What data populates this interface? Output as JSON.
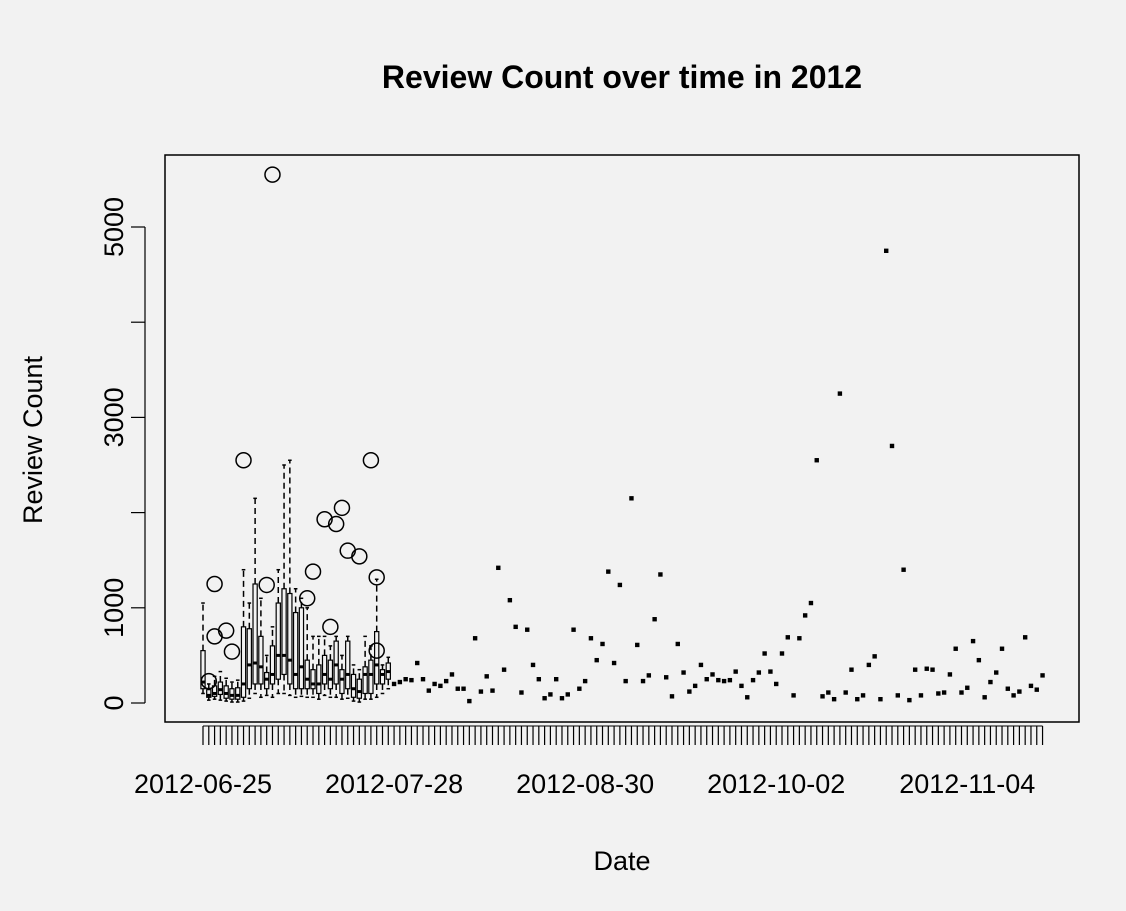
{
  "chart_data": {
    "type": "box",
    "title": "Review Count over time in 2012",
    "xlabel": "Date",
    "ylabel": "Review Count",
    "ylim": [
      -150,
      5700
    ],
    "y_ticks": [
      0,
      1000,
      3000,
      5000
    ],
    "x_tick_labels": [
      "2012-06-25",
      "2012-07-28",
      "2012-08-30",
      "2012-10-02",
      "2012-11-04"
    ],
    "n_categories": 146,
    "boxes": [
      {
        "i": 0,
        "q1": 150,
        "median": 220,
        "q3": 550,
        "low": 100,
        "high": 1050
      },
      {
        "i": 1,
        "q1": 60,
        "median": 80,
        "q3": 140,
        "low": 30,
        "high": 200
      },
      {
        "i": 2,
        "q1": 70,
        "median": 100,
        "q3": 180,
        "low": 40,
        "high": 280
      },
      {
        "i": 3,
        "q1": 90,
        "median": 140,
        "q3": 220,
        "low": 30,
        "high": 330
      },
      {
        "i": 4,
        "q1": 50,
        "median": 100,
        "q3": 180,
        "low": 20,
        "high": 260
      },
      {
        "i": 5,
        "q1": 40,
        "median": 80,
        "q3": 150,
        "low": 10,
        "high": 220
      },
      {
        "i": 6,
        "q1": 40,
        "median": 80,
        "q3": 160,
        "low": 10,
        "high": 240
      },
      {
        "i": 7,
        "q1": 60,
        "median": 200,
        "q3": 800,
        "low": 20,
        "high": 1400
      },
      {
        "i": 8,
        "q1": 150,
        "median": 400,
        "q3": 780,
        "low": 50,
        "high": 1050
      },
      {
        "i": 9,
        "q1": 200,
        "median": 420,
        "q3": 1250,
        "low": 100,
        "high": 2150
      },
      {
        "i": 10,
        "q1": 200,
        "median": 380,
        "q3": 700,
        "low": 60,
        "high": 1100
      },
      {
        "i": 11,
        "q1": 150,
        "median": 250,
        "q3": 320,
        "low": 80,
        "high": 500
      },
      {
        "i": 12,
        "q1": 200,
        "median": 300,
        "q3": 600,
        "low": 60,
        "high": 800
      },
      {
        "i": 13,
        "q1": 250,
        "median": 500,
        "q3": 1050,
        "low": 100,
        "high": 1400
      },
      {
        "i": 14,
        "q1": 300,
        "median": 500,
        "q3": 1200,
        "low": 100,
        "high": 2500
      },
      {
        "i": 15,
        "q1": 200,
        "median": 450,
        "q3": 1150,
        "low": 80,
        "high": 2550
      },
      {
        "i": 16,
        "q1": 150,
        "median": 300,
        "q3": 950,
        "low": 60,
        "high": 1200
      },
      {
        "i": 17,
        "q1": 150,
        "median": 380,
        "q3": 1000,
        "low": 70,
        "high": 1100
      },
      {
        "i": 18,
        "q1": 150,
        "median": 250,
        "q3": 450,
        "low": 60,
        "high": 1000
      },
      {
        "i": 19,
        "q1": 150,
        "median": 200,
        "q3": 350,
        "low": 60,
        "high": 700
      },
      {
        "i": 20,
        "q1": 100,
        "median": 200,
        "q3": 400,
        "low": 40,
        "high": 700
      },
      {
        "i": 21,
        "q1": 200,
        "median": 300,
        "q3": 500,
        "low": 80,
        "high": 700
      },
      {
        "i": 22,
        "q1": 150,
        "median": 250,
        "q3": 450,
        "low": 60,
        "high": 600
      },
      {
        "i": 23,
        "q1": 200,
        "median": 400,
        "q3": 650,
        "low": 60,
        "high": 700
      },
      {
        "i": 24,
        "q1": 100,
        "median": 250,
        "q3": 350,
        "low": 40,
        "high": 500
      },
      {
        "i": 25,
        "q1": 150,
        "median": 300,
        "q3": 650,
        "low": 50,
        "high": 700
      },
      {
        "i": 26,
        "q1": 60,
        "median": 150,
        "q3": 300,
        "low": 20,
        "high": 400
      },
      {
        "i": 27,
        "q1": 50,
        "median": 120,
        "q3": 250,
        "low": 10,
        "high": 350
      },
      {
        "i": 28,
        "q1": 100,
        "median": 300,
        "q3": 380,
        "low": 40,
        "high": 700
      },
      {
        "i": 29,
        "q1": 100,
        "median": 300,
        "q3": 450,
        "low": 40,
        "high": 600
      },
      {
        "i": 30,
        "q1": 200,
        "median": 400,
        "q3": 750,
        "low": 60,
        "high": 1300
      },
      {
        "i": 31,
        "q1": 200,
        "median": 300,
        "q3": 350,
        "low": 100,
        "high": 400
      },
      {
        "i": 32,
        "q1": 250,
        "median": 330,
        "q3": 420,
        "low": 150,
        "high": 480
      }
    ],
    "outliers": [
      {
        "i": 1,
        "y": 230
      },
      {
        "i": 2,
        "y": 1250
      },
      {
        "i": 2,
        "y": 700
      },
      {
        "i": 4,
        "y": 760
      },
      {
        "i": 5,
        "y": 540
      },
      {
        "i": 7,
        "y": 2550
      },
      {
        "i": 11,
        "y": 1240
      },
      {
        "i": 12,
        "y": 5550
      },
      {
        "i": 18,
        "y": 1100
      },
      {
        "i": 19,
        "y": 1380
      },
      {
        "i": 21,
        "y": 1930
      },
      {
        "i": 22,
        "y": 800
      },
      {
        "i": 23,
        "y": 1880
      },
      {
        "i": 24,
        "y": 2050
      },
      {
        "i": 25,
        "y": 1600
      },
      {
        "i": 27,
        "y": 1540
      },
      {
        "i": 29,
        "y": 2550
      },
      {
        "i": 30,
        "y": 1320
      },
      {
        "i": 30,
        "y": 550
      }
    ],
    "points": [
      {
        "i": 33,
        "y": 200
      },
      {
        "i": 34,
        "y": 220
      },
      {
        "i": 35,
        "y": 250
      },
      {
        "i": 36,
        "y": 240
      },
      {
        "i": 37,
        "y": 420
      },
      {
        "i": 38,
        "y": 250
      },
      {
        "i": 39,
        "y": 130
      },
      {
        "i": 40,
        "y": 200
      },
      {
        "i": 41,
        "y": 180
      },
      {
        "i": 42,
        "y": 230
      },
      {
        "i": 43,
        "y": 300
      },
      {
        "i": 44,
        "y": 150
      },
      {
        "i": 45,
        "y": 150
      },
      {
        "i": 46,
        "y": 20
      },
      {
        "i": 47,
        "y": 680
      },
      {
        "i": 48,
        "y": 120
      },
      {
        "i": 49,
        "y": 280
      },
      {
        "i": 50,
        "y": 130
      },
      {
        "i": 51,
        "y": 1420
      },
      {
        "i": 52,
        "y": 350
      },
      {
        "i": 53,
        "y": 1080
      },
      {
        "i": 54,
        "y": 800
      },
      {
        "i": 55,
        "y": 110
      },
      {
        "i": 56,
        "y": 770
      },
      {
        "i": 57,
        "y": 400
      },
      {
        "i": 58,
        "y": 250
      },
      {
        "i": 59,
        "y": 50
      },
      {
        "i": 60,
        "y": 90
      },
      {
        "i": 61,
        "y": 250
      },
      {
        "i": 62,
        "y": 50
      },
      {
        "i": 63,
        "y": 90
      },
      {
        "i": 64,
        "y": 770
      },
      {
        "i": 65,
        "y": 150
      },
      {
        "i": 66,
        "y": 230
      },
      {
        "i": 67,
        "y": 680
      },
      {
        "i": 68,
        "y": 450
      },
      {
        "i": 69,
        "y": 620
      },
      {
        "i": 70,
        "y": 1380
      },
      {
        "i": 71,
        "y": 420
      },
      {
        "i": 72,
        "y": 1240
      },
      {
        "i": 73,
        "y": 230
      },
      {
        "i": 74,
        "y": 2150
      },
      {
        "i": 75,
        "y": 610
      },
      {
        "i": 76,
        "y": 230
      },
      {
        "i": 77,
        "y": 290
      },
      {
        "i": 78,
        "y": 880
      },
      {
        "i": 79,
        "y": 1350
      },
      {
        "i": 80,
        "y": 270
      },
      {
        "i": 81,
        "y": 70
      },
      {
        "i": 82,
        "y": 620
      },
      {
        "i": 83,
        "y": 320
      },
      {
        "i": 84,
        "y": 120
      },
      {
        "i": 85,
        "y": 180
      },
      {
        "i": 86,
        "y": 400
      },
      {
        "i": 87,
        "y": 250
      },
      {
        "i": 88,
        "y": 300
      },
      {
        "i": 89,
        "y": 240
      },
      {
        "i": 90,
        "y": 230
      },
      {
        "i": 91,
        "y": 240
      },
      {
        "i": 92,
        "y": 330
      },
      {
        "i": 93,
        "y": 180
      },
      {
        "i": 94,
        "y": 60
      },
      {
        "i": 95,
        "y": 240
      },
      {
        "i": 96,
        "y": 320
      },
      {
        "i": 97,
        "y": 520
      },
      {
        "i": 98,
        "y": 330
      },
      {
        "i": 99,
        "y": 200
      },
      {
        "i": 100,
        "y": 520
      },
      {
        "i": 101,
        "y": 690
      },
      {
        "i": 102,
        "y": 80
      },
      {
        "i": 103,
        "y": 680
      },
      {
        "i": 104,
        "y": 920
      },
      {
        "i": 105,
        "y": 1050
      },
      {
        "i": 106,
        "y": 2550
      },
      {
        "i": 107,
        "y": 70
      },
      {
        "i": 108,
        "y": 110
      },
      {
        "i": 109,
        "y": 40
      },
      {
        "i": 110,
        "y": 3250
      },
      {
        "i": 111,
        "y": 110
      },
      {
        "i": 112,
        "y": 350
      },
      {
        "i": 113,
        "y": 40
      },
      {
        "i": 114,
        "y": 80
      },
      {
        "i": 115,
        "y": 400
      },
      {
        "i": 116,
        "y": 490
      },
      {
        "i": 117,
        "y": 40
      },
      {
        "i": 118,
        "y": 4750
      },
      {
        "i": 119,
        "y": 2700
      },
      {
        "i": 120,
        "y": 80
      },
      {
        "i": 121,
        "y": 1400
      },
      {
        "i": 122,
        "y": 30
      },
      {
        "i": 123,
        "y": 350
      },
      {
        "i": 124,
        "y": 80
      },
      {
        "i": 125,
        "y": 360
      },
      {
        "i": 126,
        "y": 350
      },
      {
        "i": 127,
        "y": 100
      },
      {
        "i": 128,
        "y": 110
      },
      {
        "i": 129,
        "y": 300
      },
      {
        "i": 130,
        "y": 570
      },
      {
        "i": 131,
        "y": 110
      },
      {
        "i": 132,
        "y": 160
      },
      {
        "i": 133,
        "y": 650
      },
      {
        "i": 134,
        "y": 450
      },
      {
        "i": 135,
        "y": 60
      },
      {
        "i": 136,
        "y": 220
      },
      {
        "i": 137,
        "y": 320
      },
      {
        "i": 138,
        "y": 570
      },
      {
        "i": 139,
        "y": 150
      },
      {
        "i": 140,
        "y": 80
      },
      {
        "i": 141,
        "y": 120
      },
      {
        "i": 142,
        "y": 690
      },
      {
        "i": 143,
        "y": 180
      },
      {
        "i": 144,
        "y": 140
      },
      {
        "i": 145,
        "y": 290
      }
    ]
  }
}
